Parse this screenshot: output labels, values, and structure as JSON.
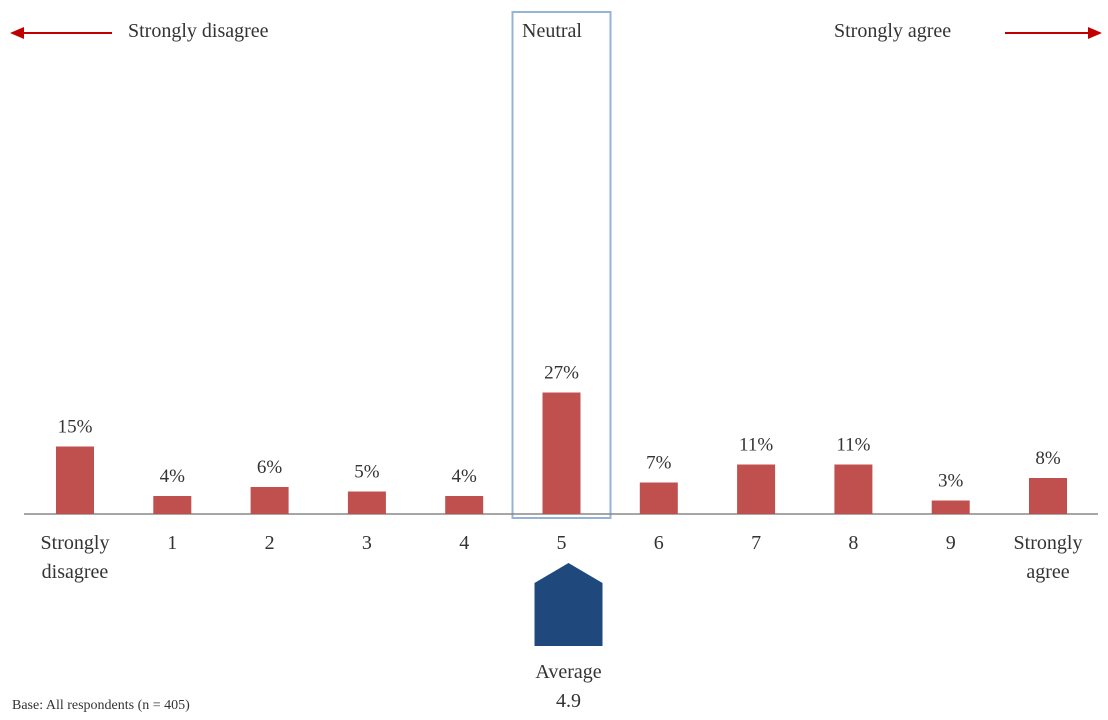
{
  "header": {
    "left_label": "Strongly disagree",
    "center_label": "Neutral",
    "right_label": "Strongly agree"
  },
  "chart_data": {
    "type": "bar",
    "categories": [
      "Strongly disagree",
      "1",
      "2",
      "3",
      "4",
      "5",
      "6",
      "7",
      "8",
      "9",
      "Strongly agree"
    ],
    "values": [
      15,
      4,
      6,
      5,
      4,
      27,
      7,
      11,
      11,
      3,
      8
    ],
    "value_labels": [
      "15%",
      "4%",
      "6%",
      "5%",
      "4%",
      "27%",
      "7%",
      "11%",
      "11%",
      "3%",
      "8%"
    ],
    "highlight_category": "5",
    "title": "",
    "xlabel": "",
    "ylabel": "",
    "ylim": [
      0,
      30
    ],
    "grid": false,
    "bar_color": "#c0504d",
    "highlight_box_color": "#95b3d7",
    "arrow_color": "#c00000",
    "marker_color": "#1f497d",
    "average": {
      "value": 4.9,
      "label": "Average",
      "value_text": "4.9"
    }
  },
  "footer": {
    "base_note": "Base: All respondents (n = 405)"
  }
}
